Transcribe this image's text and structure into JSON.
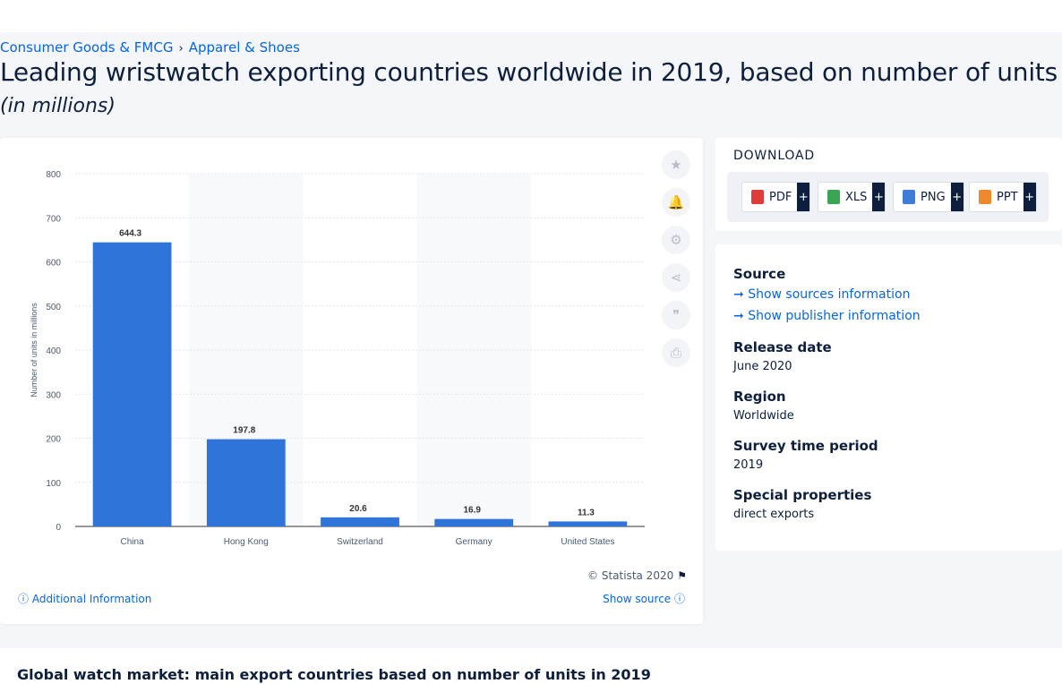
{
  "breadcrumb": {
    "items": [
      "Consumer Goods & FMCG",
      "Apparel & Shoes"
    ],
    "separator": "›"
  },
  "page": {
    "title": "Leading wristwatch exporting countries worldwide in 2019, based on number of units",
    "subtitle": "(in millions)"
  },
  "chart_data": {
    "type": "bar",
    "categories": [
      "China",
      "Hong Kong",
      "Switzerland",
      "Germany",
      "United States"
    ],
    "values": [
      644.3,
      197.8,
      20.6,
      16.9,
      11.3
    ],
    "value_labels": [
      "644.3",
      "197.8",
      "20.6",
      "16.9",
      "11.3"
    ],
    "ylabel": "Number of units in millions",
    "xlabel": "",
    "ylim": [
      0,
      800
    ],
    "yticks": [
      0,
      100,
      200,
      300,
      400,
      500,
      600,
      700,
      800
    ],
    "grid": true,
    "bar_color": "#2f74d9"
  },
  "chart_footer": {
    "copyright": "© Statista 2020",
    "additional_info": "Additional Information",
    "show_source": "Show source"
  },
  "tools": [
    "star-icon",
    "bell-icon",
    "gear-icon",
    "share-icon",
    "quote-icon",
    "print-icon"
  ],
  "download": {
    "title": "DOWNLOAD",
    "buttons": [
      {
        "label": "PDF",
        "color": "#e03b3b"
      },
      {
        "label": "XLS",
        "color": "#3aa655"
      },
      {
        "label": "PNG",
        "color": "#3b7dd8"
      },
      {
        "label": "PPT",
        "color": "#f0892b"
      }
    ],
    "plus": "+"
  },
  "info": {
    "source_heading": "Source",
    "show_sources": "Show sources information",
    "show_publisher": "Show publisher information",
    "release_heading": "Release date",
    "release_value": "June 2020",
    "region_heading": "Region",
    "region_value": "Worldwide",
    "survey_heading": "Survey time period",
    "survey_value": "2019",
    "special_heading": "Special properties",
    "special_value": "direct exports"
  },
  "related": {
    "title": "Global watch market: main export countries based on number of units in 2019"
  },
  "colors": {
    "accent": "#0666e5",
    "text": "#0d1f3c"
  }
}
